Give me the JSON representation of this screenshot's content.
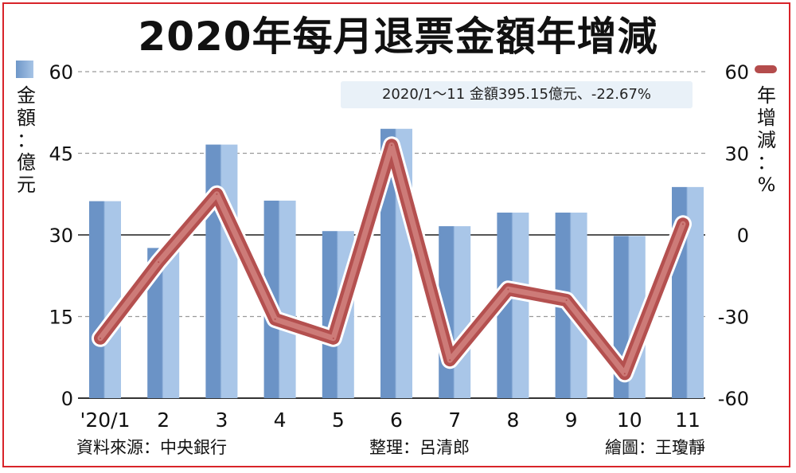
{
  "title": "2020年每月退票金額年增減",
  "summary": "2020/1～11 金額395.15億元、-22.67%",
  "footer": {
    "source": "資料來源：中央銀行",
    "editor": "整理：呂清郎",
    "illustrator": "繪圖：王瓊靜"
  },
  "colors": {
    "bar_dark": "#6b93c6",
    "bar_light": "#a9c6e8",
    "line": "#b4504f",
    "line_light": "#d58a86",
    "frame": "#d8242a"
  },
  "chart_data": {
    "type": "bar+line",
    "categories": [
      "'20/1",
      "2",
      "3",
      "4",
      "5",
      "6",
      "7",
      "8",
      "9",
      "10",
      "11"
    ],
    "series": [
      {
        "name": "金額",
        "unit": "億元",
        "type": "bar",
        "axis": "left",
        "values": [
          36.2,
          27.6,
          46.6,
          36.3,
          30.7,
          49.5,
          31.6,
          34.1,
          34.1,
          29.8,
          38.8
        ]
      },
      {
        "name": "年增減",
        "unit": "%",
        "type": "line",
        "axis": "right",
        "values": [
          -38,
          -10,
          15,
          -31,
          -38,
          33,
          -46,
          -20,
          -24,
          -51,
          4
        ]
      }
    ],
    "y_left": {
      "label": "金額：億元",
      "ticks": [
        0,
        15,
        30,
        45,
        60
      ],
      "range": [
        0,
        60
      ]
    },
    "y_right": {
      "label": "年增減：%",
      "ticks": [
        -60,
        -30,
        0,
        30,
        60
      ],
      "range": [
        -60,
        60
      ]
    },
    "grid": true
  }
}
